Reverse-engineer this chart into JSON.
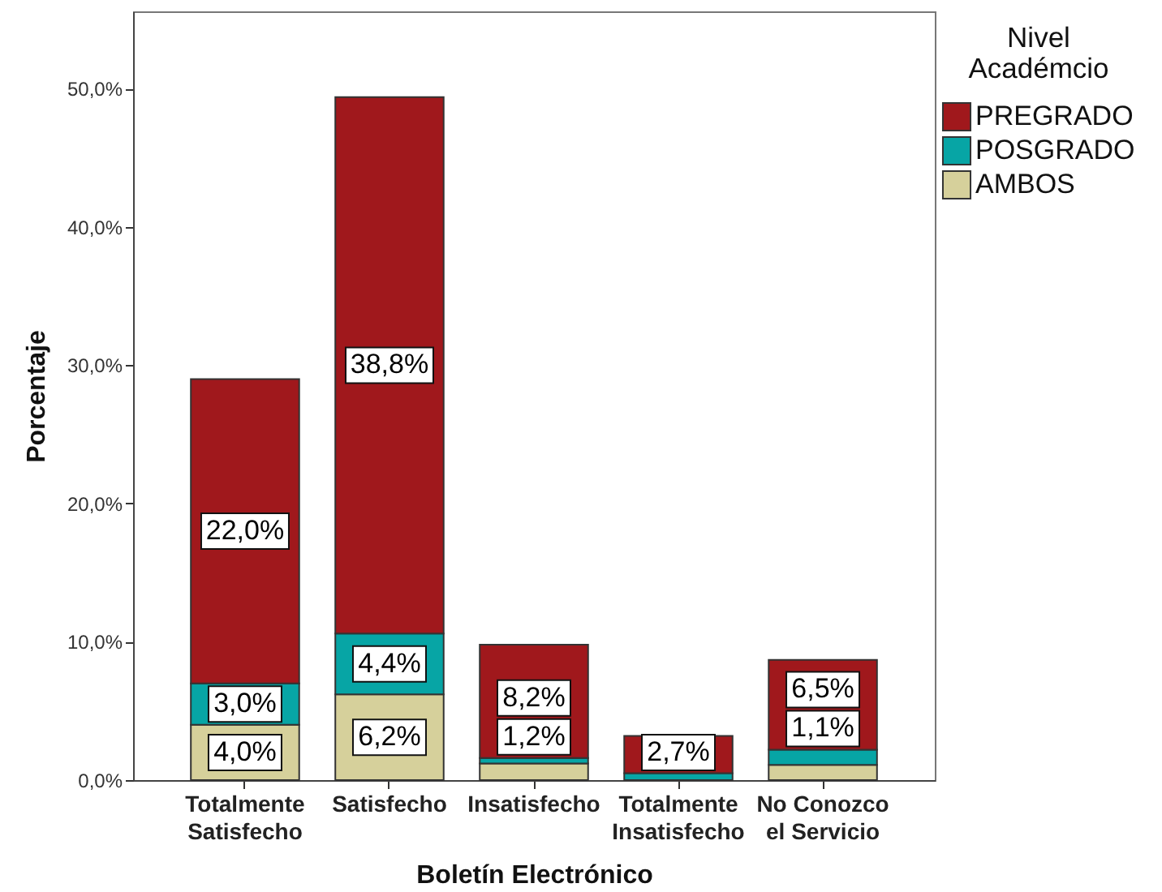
{
  "chart_data": {
    "type": "bar",
    "stacked": true,
    "xlabel": "Boletín Electrónico",
    "ylabel": "Porcentaje",
    "legend_title": "Nivel Académcio",
    "legend": "top right",
    "categories": [
      "Totalmente Satisfecho",
      "Satisfecho",
      "Insatisfecho",
      "Totalmente Insatisfecho",
      "No Conozco el Servicio"
    ],
    "ylim": [
      0,
      55.6
    ],
    "yticks": [
      {
        "value": 0,
        "label": "0,0%"
      },
      {
        "value": 10,
        "label": "10,0%"
      },
      {
        "value": 20,
        "label": "20,0%"
      },
      {
        "value": 30,
        "label": "30,0%"
      },
      {
        "value": 40,
        "label": "40,0%"
      },
      {
        "value": 50,
        "label": "50,0%"
      }
    ],
    "series": [
      {
        "name": "AMBOS",
        "color": "#d6d09b",
        "values": [
          4.0,
          6.2,
          1.2,
          null,
          1.1
        ],
        "value_labels": [
          "4,0%",
          "6,2%",
          "1,2%",
          null,
          "1,1%"
        ]
      },
      {
        "name": "POSGRADO",
        "color": "#07a5a5",
        "values": [
          3.0,
          4.4,
          0.4,
          0.5,
          1.1
        ],
        "value_labels": [
          "3,0%",
          "4,4%",
          null,
          null,
          null
        ]
      },
      {
        "name": "PREGRADO",
        "color": "#a0181c",
        "values": [
          22.0,
          38.8,
          8.2,
          2.7,
          6.5
        ],
        "value_labels": [
          "22,0%",
          "38,8%",
          "8,2%",
          "2,7%",
          "6,5%"
        ]
      }
    ]
  }
}
